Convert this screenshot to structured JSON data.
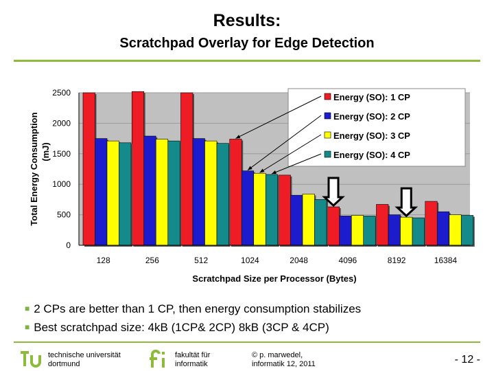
{
  "slide": {
    "title": "Results:",
    "subtitle": "Scratchpad Overlay for Edge Detection",
    "bullets": [
      "2 CPs are better than 1 CP, then energy consumption stabilizes",
      "Best scratchpad size: 4kB (1CP& 2CP)  8kB (3CP & 4CP)"
    ],
    "footer": {
      "univ_line1": "technische universität",
      "univ_line2": "dortmund",
      "fak_line1": "fakultät für",
      "fak_line2": "informatik",
      "author_line1": "© p. marwedel,",
      "author_line2": "informatik 12,  2011",
      "page": "- 12 -"
    },
    "accent_color": "#8dbb3a"
  },
  "chart_data": {
    "type": "bar",
    "xlabel": "Scratchpad Size per Processor (Bytes)",
    "ylabel": "Total Energy Consumption (mJ)",
    "ylim": [
      0,
      2500
    ],
    "yticks": [
      0,
      500,
      1000,
      1500,
      2000,
      2500
    ],
    "categories": [
      "128",
      "256",
      "512",
      "1024",
      "2048",
      "4096",
      "8192",
      "16384"
    ],
    "series": [
      {
        "name": "Energy (SO): 1 CP",
        "color": "#ee1c24",
        "values": [
          2500,
          2520,
          2500,
          1740,
          1150,
          630,
          670,
          720
        ]
      },
      {
        "name": "Energy (SO): 2 CP",
        "color": "#1c1ccc",
        "values": [
          1750,
          1790,
          1750,
          1220,
          820,
          480,
          500,
          550
        ]
      },
      {
        "name": "Energy (SO): 3 CP",
        "color": "#ffff00",
        "values": [
          1710,
          1740,
          1710,
          1180,
          840,
          490,
          460,
          500
        ]
      },
      {
        "name": "Energy (SO): 4 CP",
        "color": "#148a8a",
        "values": [
          1680,
          1710,
          1670,
          1160,
          750,
          480,
          450,
          490
        ]
      }
    ],
    "grid": true,
    "legend_position": "top-right",
    "annotations": [
      {
        "type": "arrow",
        "from": "legend",
        "to_category": "1024",
        "to_series": 0
      },
      {
        "type": "arrow",
        "from": "legend",
        "to_category": "1024",
        "to_series": 1
      },
      {
        "type": "arrow",
        "from": "legend",
        "to_category": "1024",
        "to_series": 2
      },
      {
        "type": "arrow",
        "from": "legend",
        "to_category": "1024",
        "to_series": 3
      },
      {
        "type": "down-arrow",
        "category": "4096",
        "series": 0
      },
      {
        "type": "down-arrow",
        "category": "8192",
        "series": 2
      }
    ]
  }
}
